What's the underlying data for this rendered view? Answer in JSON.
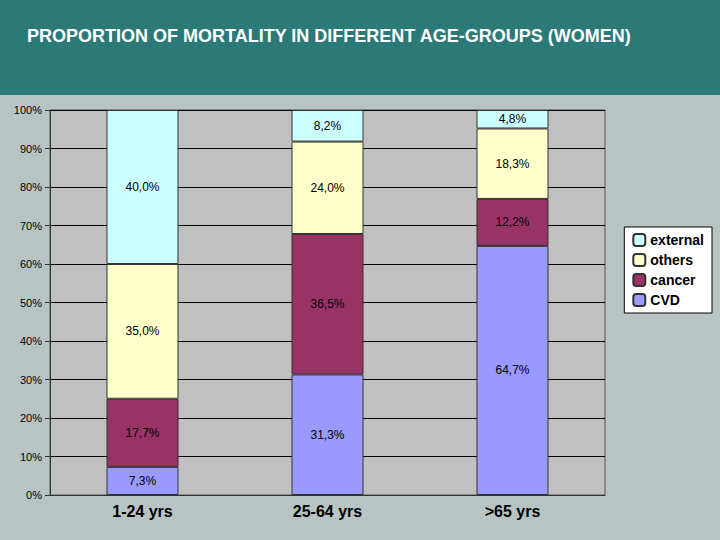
{
  "chart_data": {
    "type": "bar",
    "title": "PROPORTION OF MORTALITY IN DIFFERENT AGE-GROUPS (WOMEN)",
    "categories": [
      "1-24 yrs",
      "25-64 yrs",
      ">65 yrs"
    ],
    "series": [
      {
        "name": "CVD",
        "color": "#9999ff",
        "values": [
          7.3,
          31.3,
          64.7
        ],
        "value_labels": [
          "7,3%",
          "31,3%",
          "64,7%"
        ]
      },
      {
        "name": "cancer",
        "color": "#993366",
        "values": [
          17.7,
          36.5,
          12.2
        ],
        "value_labels": [
          "17,7%",
          "36,5%",
          "12,2%"
        ]
      },
      {
        "name": "others",
        "color": "#ffffcc",
        "values": [
          35.0,
          24.0,
          18.3
        ],
        "value_labels": [
          "35,0%",
          "24,0%",
          "18,3%"
        ]
      },
      {
        "name": "external",
        "color": "#ccffff",
        "values": [
          40.0,
          8.2,
          4.8
        ],
        "value_labels": [
          "40,0%",
          "8,2%",
          "4,8%"
        ]
      }
    ],
    "ylim": [
      0,
      100
    ],
    "yticks": [
      {
        "value": 0,
        "label": "0%"
      },
      {
        "value": 10,
        "label": "10%"
      },
      {
        "value": 20,
        "label": "20%"
      },
      {
        "value": 30,
        "label": "30%"
      },
      {
        "value": 40,
        "label": "40%"
      },
      {
        "value": 50,
        "label": "50%"
      },
      {
        "value": 60,
        "label": "60%"
      },
      {
        "value": 70,
        "label": "70%"
      },
      {
        "value": 80,
        "label": "80%"
      },
      {
        "value": 90,
        "label": "90%"
      },
      {
        "value": 100,
        "label": "100%"
      }
    ],
    "grid": true,
    "stacked": true,
    "data_labels": true,
    "legend": "right"
  }
}
